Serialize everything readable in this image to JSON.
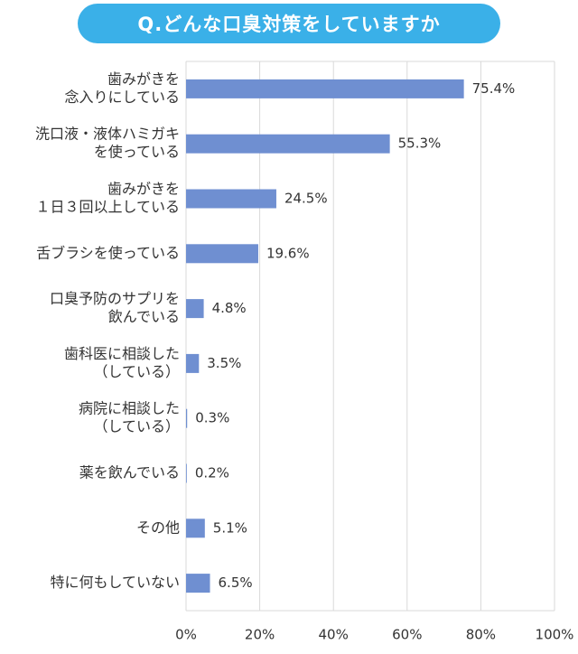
{
  "title": "Q.どんな口臭対策をしていますか",
  "chart_data": {
    "type": "bar",
    "orientation": "horizontal",
    "categories": [
      [
        "歯みがきを",
        "念入りにしている"
      ],
      [
        "洗口液・液体ハミガキ",
        "を使っている"
      ],
      [
        "歯みがきを",
        "１日３回以上している"
      ],
      [
        "舌ブラシを使っている"
      ],
      [
        "口臭予防のサプリを",
        "飲んでいる"
      ],
      [
        "歯科医に相談した",
        "（している）"
      ],
      [
        "病院に相談した",
        "（している）"
      ],
      [
        "薬を飲んでいる"
      ],
      [
        "その他"
      ],
      [
        "特に何もしていない"
      ]
    ],
    "values": [
      75.4,
      55.3,
      24.5,
      19.6,
      4.8,
      3.5,
      0.3,
      0.2,
      5.1,
      6.5
    ],
    "value_labels": [
      "75.4%",
      "55.3%",
      "24.5%",
      "19.6%",
      "4.8%",
      "3.5%",
      "0.3%",
      "0.2%",
      "5.1%",
      "6.5%"
    ],
    "xlim": [
      0,
      100
    ],
    "x_ticks": [
      0,
      20,
      40,
      60,
      80,
      100
    ],
    "x_tick_labels": [
      "0%",
      "20%",
      "40%",
      "60%",
      "80%",
      "100%"
    ],
    "grid": true,
    "bar_color": "#6f8fd1",
    "grid_color": "#d9d9d9"
  }
}
